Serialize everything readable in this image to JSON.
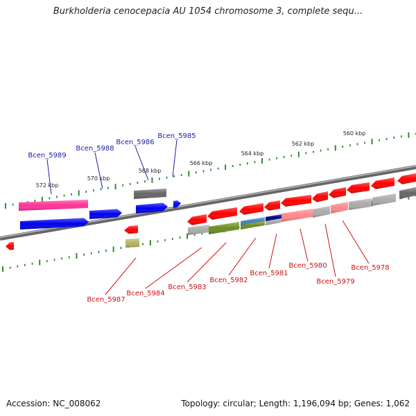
{
  "title": "Burkholderia cenocepacia AU 1054 chromosome 3, complete sequ...",
  "footer": {
    "accession": "Accession: NC_008062",
    "topology": "Topology: circular; Length: 1,196,094 bp; Genes: 1,062"
  },
  "colors": {
    "backbone": "#8a8a8a",
    "tick": "#2e8b2e",
    "forward_label": "#1a1aaa",
    "reverse_label": "#cc1111"
  },
  "scale_labels": [
    {
      "text": "572 kbp"
    },
    {
      "text": "570 kbp"
    },
    {
      "text": "568 kbp"
    },
    {
      "text": "566 kbp"
    },
    {
      "text": "564 kbp"
    },
    {
      "text": "562 kbp"
    },
    {
      "text": "560 kbp"
    }
  ],
  "forward_gene_labels": [
    {
      "text": "Bcen_5989"
    },
    {
      "text": "Bcen_5988"
    },
    {
      "text": "Bcen_5986"
    },
    {
      "text": "Bcen_5985"
    }
  ],
  "reverse_gene_labels": [
    {
      "text": "Bcen_5987"
    },
    {
      "text": "Bcen_5984"
    },
    {
      "text": "Bcen_5983"
    },
    {
      "text": "Bcen_5982"
    },
    {
      "text": "Bcen_5981"
    },
    {
      "text": "Bcen_5980"
    },
    {
      "text": "Bcen_5979"
    },
    {
      "text": "Bcen_5978"
    }
  ],
  "feature_colors": [
    "#ff3399",
    "#0000ee",
    "#666666",
    "#ff0000",
    "#ff8888",
    "#aaaaaa",
    "#6b8e23",
    "#4682b4",
    "#000080",
    "#b5b35f"
  ]
}
